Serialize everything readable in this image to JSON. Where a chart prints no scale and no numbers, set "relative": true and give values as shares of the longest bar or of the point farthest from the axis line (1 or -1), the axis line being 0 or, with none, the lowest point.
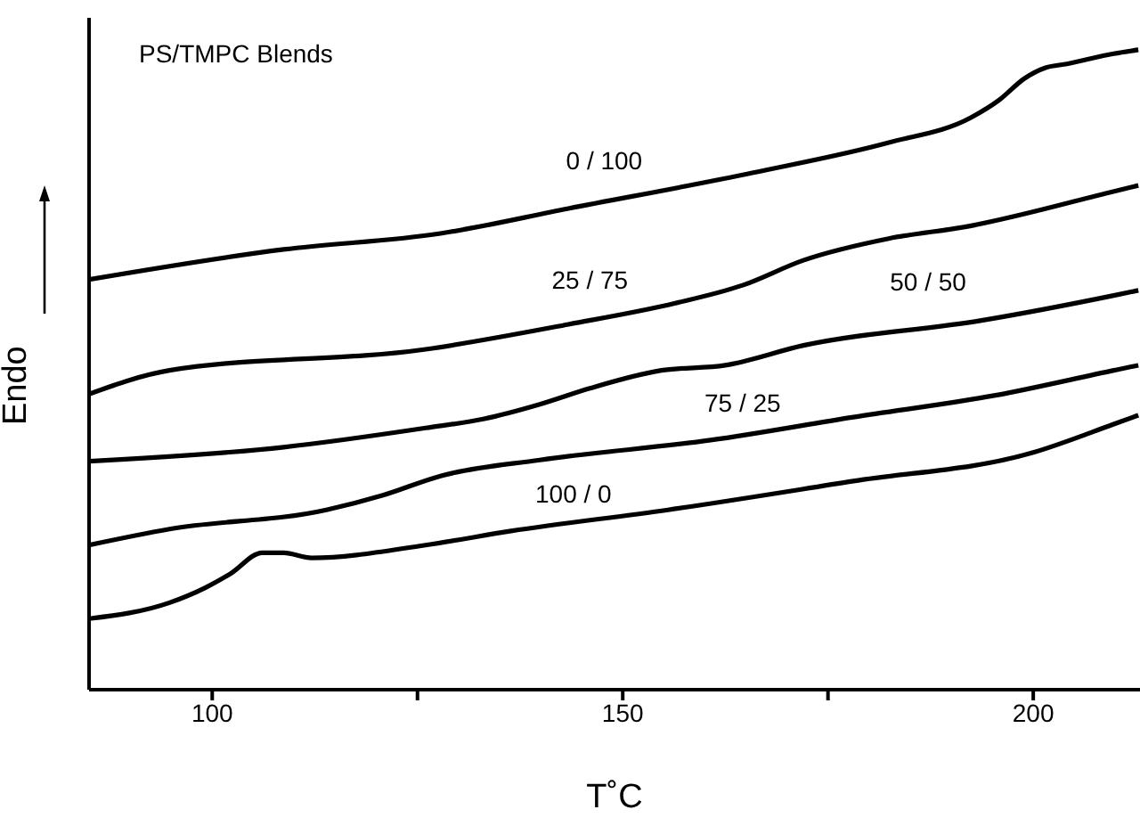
{
  "chart_data": {
    "type": "line",
    "title": "PS/TMPC Blends",
    "xlabel": "T˚C",
    "ylabel": "Endo",
    "relative": true,
    "xlim": [
      85,
      213
    ],
    "xticks": [
      100,
      {
        "value": 125,
        "label": null
      },
      150,
      {
        "value": 175,
        "label": null
      },
      200
    ],
    "marker": "none",
    "line_style": "solid",
    "series": [
      {
        "name": "0 / 100",
        "color": "#000000",
        "x": [
          85,
          108.7,
          127.8,
          143.4,
          165.9,
          182.4,
          192.4,
          195.9,
          198.9,
          201.5,
          204.1,
          209.8,
          212.8
        ],
        "values": [
          0.641,
          0.688,
          0.713,
          0.752,
          0.808,
          0.855,
          0.894,
          0.922,
          0.955,
          0.972,
          0.978,
          0.994,
          1
        ]
      },
      {
        "name": "25 / 75",
        "color": "#000000",
        "x": [
          85,
          94.8,
          126,
          143.4,
          156.4,
          164.6,
          172,
          182.4,
          192,
          209.3,
          212.8
        ],
        "values": [
          0.462,
          0.499,
          0.532,
          0.571,
          0.604,
          0.632,
          0.671,
          0.705,
          0.724,
          0.777,
          0.788
        ]
      },
      {
        "name": "50 / 50",
        "color": "#000000",
        "x": [
          85,
          108.7,
          126,
          133,
          139.9,
          146,
          154.7,
          162.5,
          172,
          193.7,
          209.8,
          212.8
        ],
        "values": [
          0.357,
          0.379,
          0.409,
          0.423,
          0.446,
          0.471,
          0.499,
          0.507,
          0.538,
          0.577,
          0.616,
          0.624
        ]
      },
      {
        "name": "75 / 25",
        "color": "#000000",
        "x": [
          85,
          94.8,
          113.9,
          120.8,
          127.8,
          139.9,
          160.7,
          178.1,
          195.4,
          209.8,
          212.8
        ],
        "values": [
          0.226,
          0.251,
          0.281,
          0.304,
          0.334,
          0.359,
          0.39,
          0.426,
          0.46,
          0.499,
          0.507
        ]
      },
      {
        "name": "100 / 0",
        "color": "#000000",
        "x": [
          85,
          94.8,
          99.1,
          102.2,
          106.1,
          108.7,
          112.1,
          126,
          136.4,
          155.5,
          178.1,
          199.8,
          209.8,
          212.8
        ],
        "values": [
          0.111,
          0.136,
          0.159,
          0.181,
          0.214,
          0.214,
          0.206,
          0.226,
          0.248,
          0.281,
          0.326,
          0.37,
          0.415,
          0.429
        ]
      }
    ]
  }
}
